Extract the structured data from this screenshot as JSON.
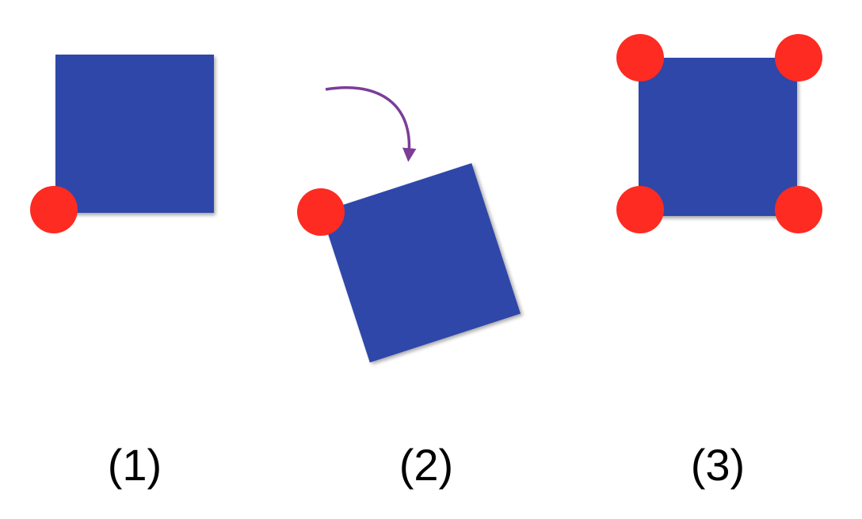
{
  "colors": {
    "square": "#2f47a9",
    "square_shadow": "#1c2c73",
    "pin": "#fd2b21",
    "arrow": "#7b3d97",
    "background": "#ffffff"
  },
  "panels": [
    {
      "label": "(1)",
      "pins": 1
    },
    {
      "label": "(2)",
      "pins": 1
    },
    {
      "label": "(3)",
      "pins": 4
    }
  ]
}
